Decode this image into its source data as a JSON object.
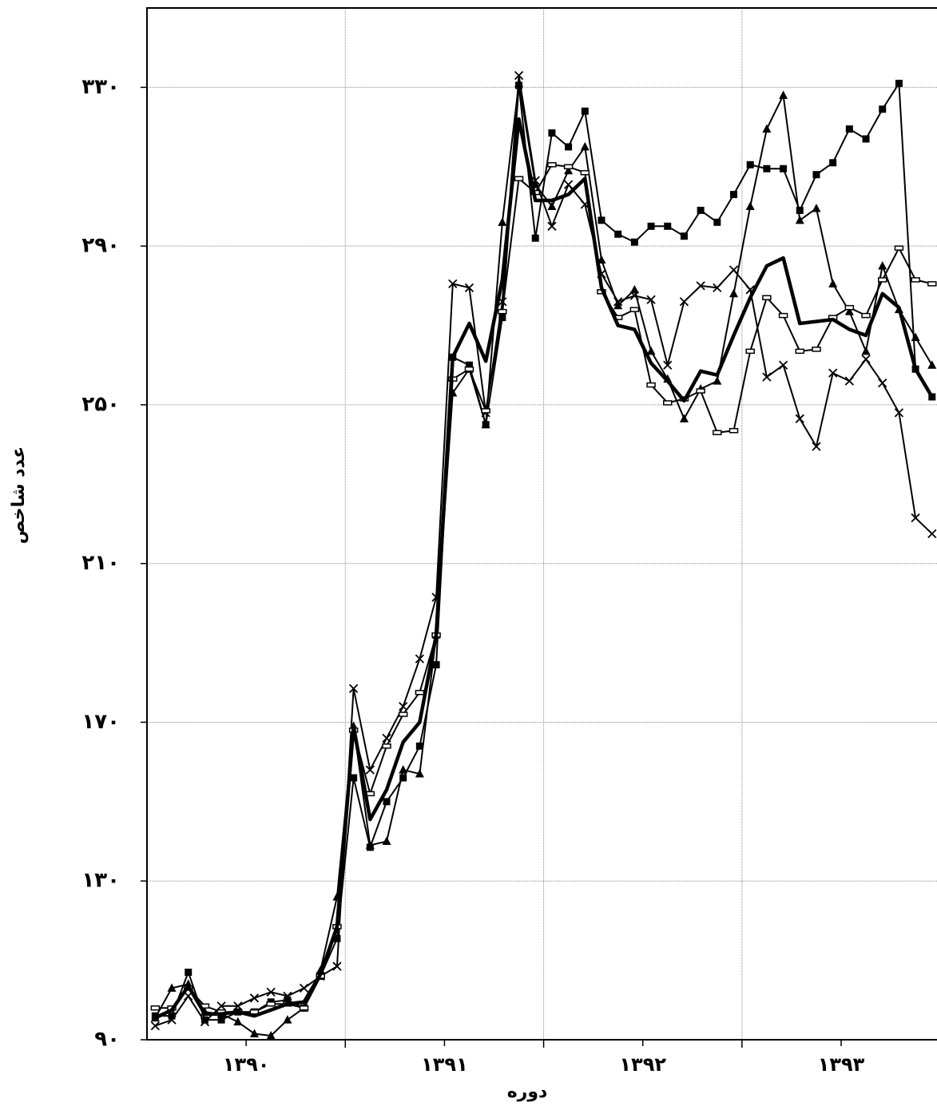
{
  "chart_data": {
    "type": "line",
    "xlabel": "دوره",
    "ylabel": "عدد شاخص",
    "x": [
      1,
      2,
      3,
      4,
      5,
      6,
      7,
      8,
      9,
      10,
      11,
      12,
      13,
      14,
      15,
      16,
      17,
      18,
      19,
      20,
      21,
      22,
      23,
      24,
      25,
      26,
      27,
      28,
      29,
      30,
      31,
      32,
      33,
      34,
      35,
      36,
      37,
      38,
      39,
      40,
      41,
      42,
      43,
      44,
      45,
      46,
      47,
      48
    ],
    "xlim": [
      0.5,
      48.3
    ],
    "xticks": [
      {
        "value": 6.5,
        "label": "۱۳۹۰"
      },
      {
        "value": 18.5,
        "label": "۱۳۹۱"
      },
      {
        "value": 30.5,
        "label": "۱۳۹۲"
      },
      {
        "value": 42.5,
        "label": "۱۳۹۳"
      }
    ],
    "xgrid": [
      12.5,
      24.5,
      36.5
    ],
    "ylim": [
      90,
      350
    ],
    "yticks": [
      {
        "value": 90,
        "label": "۹۰"
      },
      {
        "value": 130,
        "label": "۱۳۰"
      },
      {
        "value": 170,
        "label": "۱۷۰"
      },
      {
        "value": 210,
        "label": "۲۱۰"
      },
      {
        "value": 250,
        "label": "۲۵۰"
      },
      {
        "value": 290,
        "label": "۲۹۰"
      },
      {
        "value": 330,
        "label": "۳۳۰"
      }
    ],
    "grid": true,
    "series": [
      {
        "color": "#000000",
        "marker": "square",
        "width": 2,
        "values": [
          96,
          96,
          107,
          95,
          95,
          97,
          97,
          99.5,
          100,
          98,
          106,
          115.5,
          156,
          138.5,
          150,
          156,
          164,
          184.5,
          262,
          260,
          245,
          272,
          330.5,
          292,
          318.5,
          315,
          324,
          296.5,
          293,
          291,
          295,
          295,
          292.5,
          299,
          296,
          303,
          310.5,
          309.5,
          309.5,
          299,
          308,
          311,
          319.5,
          317,
          324.5,
          331,
          259,
          252
        ]
      },
      {
        "color": "#000000",
        "marker": "triangle",
        "width": 2,
        "values": [
          95.5,
          103,
          104,
          97,
          96.5,
          94.5,
          91.5,
          91,
          95,
          98,
          107.5,
          126,
          169,
          139,
          140,
          158,
          157,
          192,
          253,
          259,
          245,
          296,
          331,
          305.5,
          300,
          309,
          315,
          286.5,
          275,
          279,
          263.5,
          256.5,
          246.5,
          254,
          256,
          278,
          300,
          319.5,
          328,
          296.5,
          299.5,
          280.5,
          273.5,
          263.5,
          285,
          274,
          267,
          260
        ]
      },
      {
        "color": "#000000",
        "marker": "cross",
        "width": 2,
        "values": [
          93.5,
          95,
          101,
          94.5,
          98.5,
          98.5,
          100.5,
          102,
          101,
          103,
          106,
          108.5,
          178.5,
          158,
          166,
          174,
          186,
          201.5,
          280.5,
          279.5,
          248,
          276,
          333,
          306.5,
          295,
          305.5,
          300.5,
          283,
          276,
          277.5,
          276.5,
          260,
          276,
          280,
          279.5,
          284,
          279,
          257,
          260,
          246.5,
          239.5,
          258,
          256,
          261.5,
          255.5,
          248,
          221.5,
          217.5
        ]
      },
      {
        "color": "#000000",
        "marker": "dash",
        "width": 2,
        "values": [
          98,
          98,
          103,
          98.5,
          97,
          97,
          97,
          99,
          99,
          98,
          106,
          118.5,
          168,
          152,
          164,
          172,
          177.5,
          192,
          256.5,
          259,
          248.5,
          273.5,
          307,
          303.5,
          310.5,
          310,
          308.5,
          278.5,
          272,
          274,
          255,
          250.5,
          251.5,
          253.5,
          243,
          243.5,
          263.5,
          277,
          272.5,
          263.5,
          264,
          272,
          274.5,
          272.5,
          281.5,
          289.5,
          281.5,
          280.5
        ]
      },
      {
        "color": "#000000",
        "marker": "none",
        "width": 4.5,
        "values": [
          95.5,
          97.5,
          103.5,
          96.5,
          96.5,
          97,
          96,
          97.5,
          99,
          99.5,
          106.5,
          118.5,
          169,
          145.5,
          153,
          165,
          170,
          192,
          262,
          270.5,
          261,
          281.5,
          322,
          301.5,
          301.5,
          303,
          307,
          279.5,
          270,
          269,
          260.5,
          256,
          251,
          258.5,
          257.5,
          267.5,
          277,
          285,
          287,
          270.5,
          271,
          271.5,
          269,
          267.5,
          278,
          274.5,
          259,
          252
        ]
      }
    ]
  }
}
